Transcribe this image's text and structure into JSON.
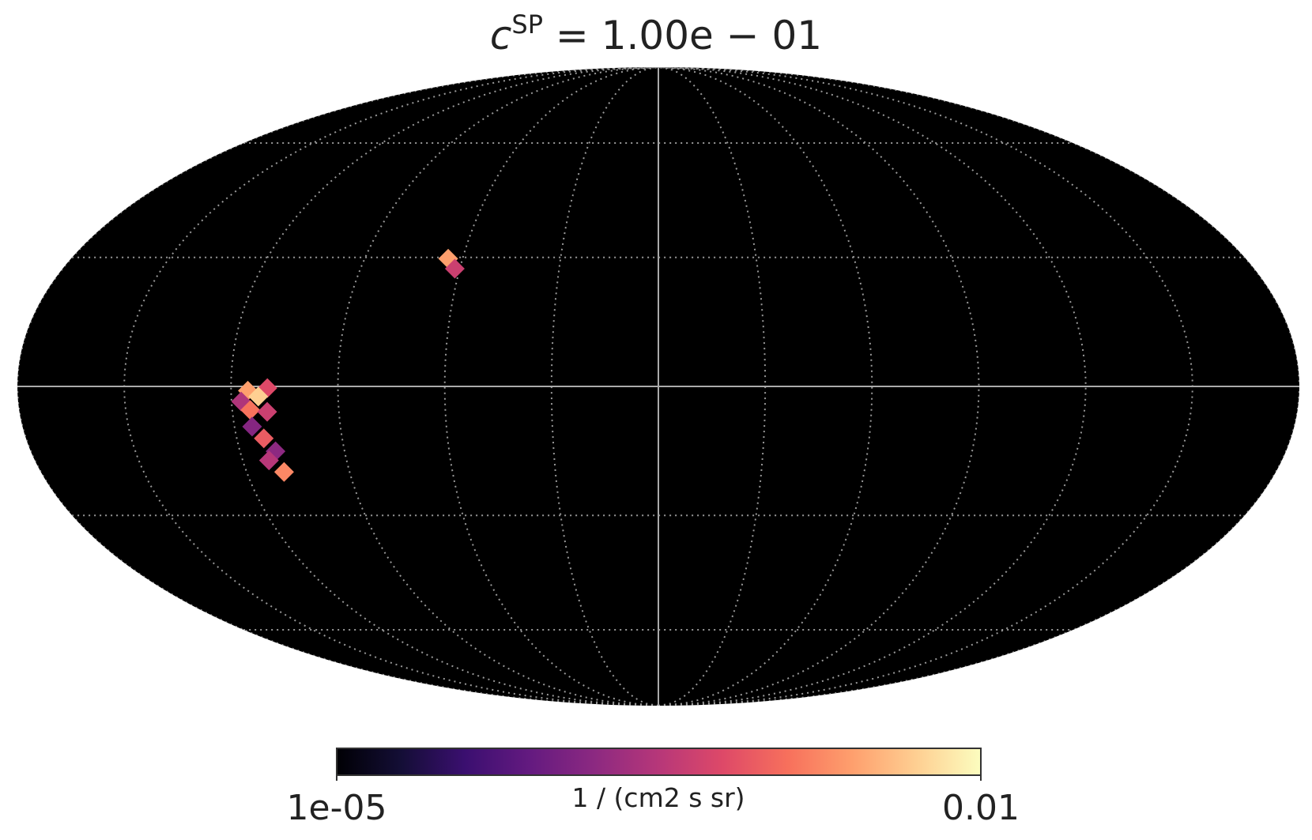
{
  "chart_data": {
    "type": "healpix-mollweide",
    "title": {
      "base": "c",
      "superscript": "SP",
      "rest": " = 1.00e − 01"
    },
    "grid": true,
    "pixels": {
      "lon": [
        115.3,
        109.8,
        112.4,
        117.3,
        114.9,
        110.2,
        115.0,
        112.3,
        109.8,
        112.4,
        109.1,
        64.4,
        61.5
      ],
      "lat": [
        -0.96,
        -0.38,
        -2.3,
        -3.46,
        -5.4,
        -5.8,
        -9.2,
        -11.9,
        -14.9,
        -17.0,
        -19.7,
        29.7,
        27.3
      ],
      "values": [
        0.0025,
        0.00063,
        0.005,
        0.00028,
        0.0013,
        0.00045,
        0.00014,
        0.00089,
        0.00016,
        0.00032,
        0.0018,
        0.0025,
        0.00045
      ]
    },
    "colorbar": {
      "label": "1 / (cm2 s sr)",
      "cmap": "magma",
      "log": true,
      "lim": [
        1e-05,
        0.01
      ],
      "ticks": [
        {
          "value": 1e-05,
          "label": "1e-05"
        },
        {
          "value": 0.01,
          "label": "0.01"
        }
      ]
    }
  }
}
